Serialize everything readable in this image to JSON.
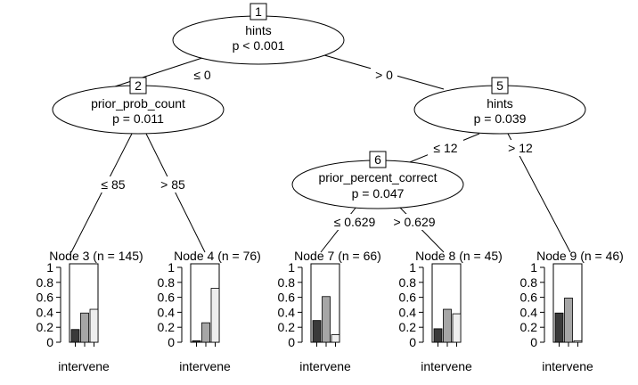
{
  "nodes": {
    "n1": {
      "id": "1",
      "var": "hints",
      "p": "p < 0.001"
    },
    "n2": {
      "id": "2",
      "var": "prior_prob_count",
      "p": "p = 0.011"
    },
    "n5": {
      "id": "5",
      "var": "hints",
      "p": "p = 0.039"
    },
    "n6": {
      "id": "6",
      "var": "prior_percent_correct",
      "p": "p = 0.047"
    }
  },
  "edges": {
    "e1_2": "≤ 0",
    "e1_5": "> 0",
    "e2_3": "≤ 85",
    "e2_4": "> 85",
    "e5_6": "≤ 12",
    "e5_9": "> 12",
    "e6_7": "≤ 0.629",
    "e6_8": "> 0.629"
  },
  "terminal_xlabel": "intervene",
  "y_ticks": [
    "0",
    "0.2",
    "0.4",
    "0.6",
    "0.8",
    "1"
  ],
  "bar_colors": [
    "#3a3a3a",
    "#a6a6a6",
    "#eeeeee"
  ],
  "chart_data": [
    {
      "type": "bar",
      "title": "Node 3 (n = 145)",
      "xlabel": "intervene",
      "ylim": [
        0,
        1
      ],
      "values": [
        0.17,
        0.39,
        0.44
      ]
    },
    {
      "type": "bar",
      "title": "Node 4 (n = 76)",
      "xlabel": "intervene",
      "ylim": [
        0,
        1
      ],
      "values": [
        0.02,
        0.26,
        0.72
      ]
    },
    {
      "type": "bar",
      "title": "Node 7 (n = 66)",
      "xlabel": "intervene",
      "ylim": [
        0,
        1
      ],
      "values": [
        0.29,
        0.61,
        0.1
      ]
    },
    {
      "type": "bar",
      "title": "Node 8 (n = 45)",
      "xlabel": "intervene",
      "ylim": [
        0,
        1
      ],
      "values": [
        0.18,
        0.44,
        0.38
      ]
    },
    {
      "type": "bar",
      "title": "Node 9 (n = 46)",
      "xlabel": "intervene",
      "ylim": [
        0,
        1
      ],
      "values": [
        0.39,
        0.59,
        0.02
      ]
    }
  ]
}
